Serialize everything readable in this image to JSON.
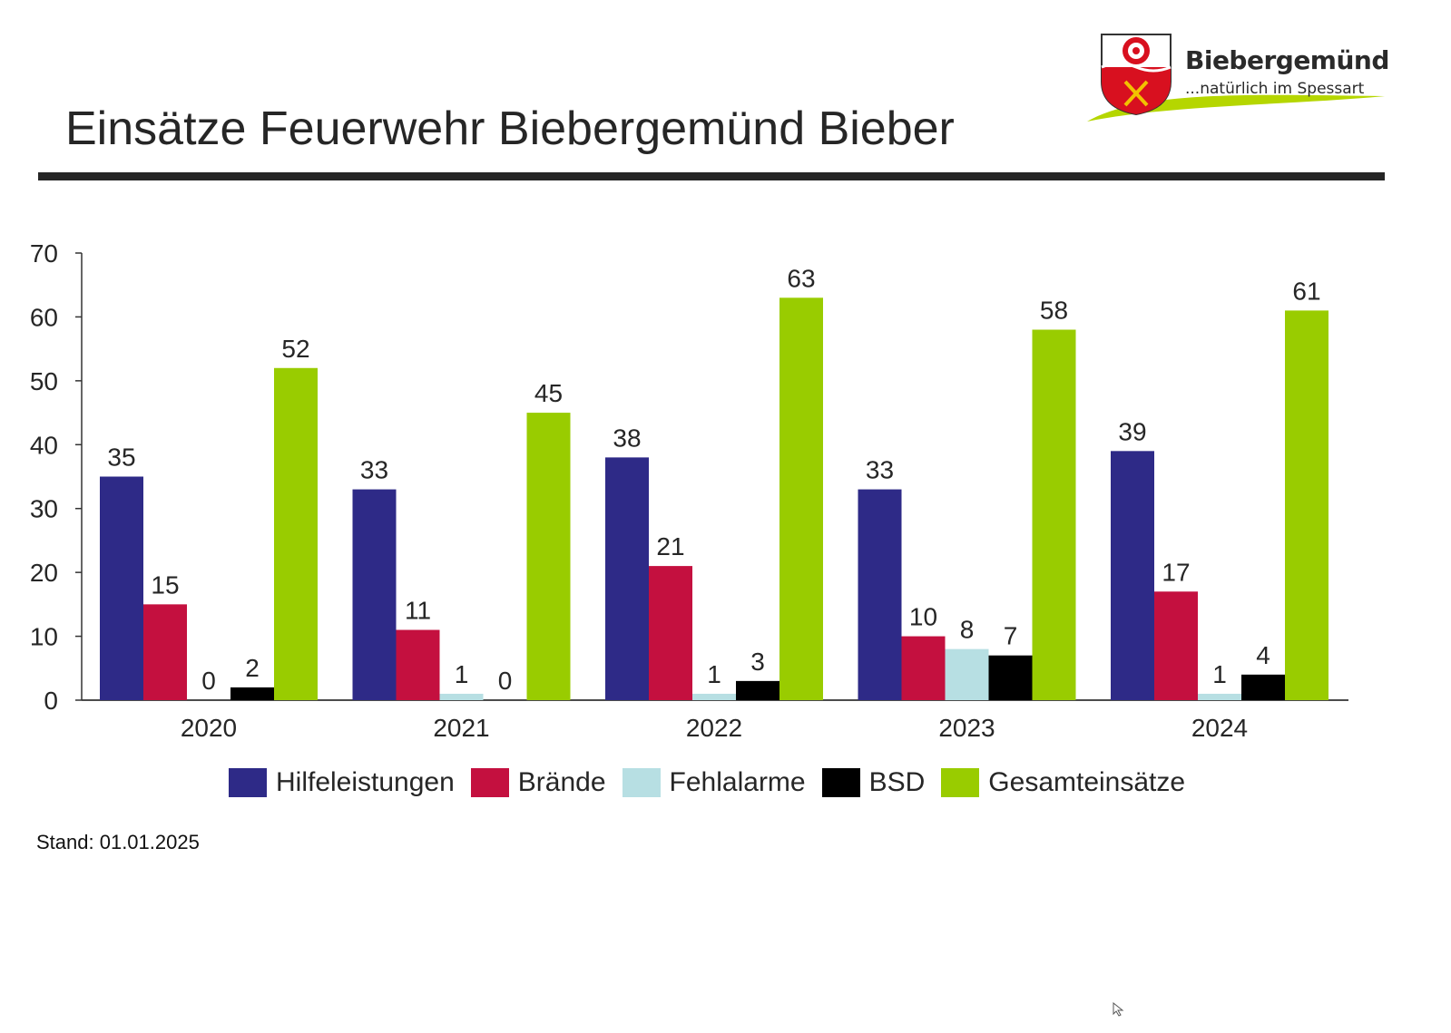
{
  "header": {
    "title": "Einsätze Feuerwehr Biebergemünd Bieber",
    "brand_name": "Biebergemünd",
    "brand_tagline": "...natürlich im Spessart"
  },
  "footnote": "Stand: 01.01.2025",
  "chart_data": {
    "type": "bar",
    "title": "Einsätze Feuerwehr Biebergemünd Bieber",
    "xlabel": "",
    "ylabel": "",
    "ylim": [
      0,
      70
    ],
    "yticks": [
      0,
      10,
      20,
      30,
      40,
      50,
      60,
      70
    ],
    "categories": [
      "2020",
      "2021",
      "2022",
      "2023",
      "2024"
    ],
    "legend_position": "bottom",
    "grid": false,
    "series": [
      {
        "name": "Hilfeleistungen",
        "color": "#2e2a87",
        "values": [
          35,
          33,
          38,
          33,
          39
        ]
      },
      {
        "name": "Brände",
        "color": "#c4103f",
        "values": [
          15,
          11,
          21,
          10,
          17
        ]
      },
      {
        "name": "Fehlalarme",
        "color": "#b7dfe3",
        "values": [
          0,
          1,
          1,
          8,
          1
        ]
      },
      {
        "name": "BSD",
        "color": "#000000",
        "values": [
          2,
          0,
          3,
          7,
          4
        ]
      },
      {
        "name": "Gesamteinsätze",
        "color": "#99cc00",
        "values": [
          52,
          45,
          63,
          58,
          61
        ]
      }
    ]
  }
}
